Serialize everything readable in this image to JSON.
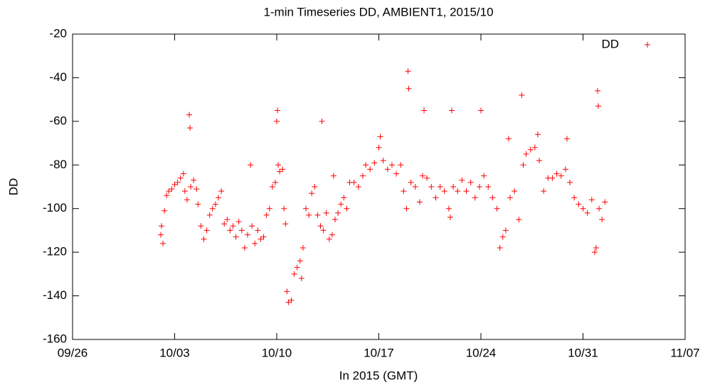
{
  "chart_data": {
    "type": "scatter",
    "title": "1-min Timeseries DD, AMBIENT1, 2015/10",
    "x_label": "In 2015 (GMT)",
    "y_label": "DD",
    "xlim": [
      0,
      42
    ],
    "xticks": [
      {
        "value": 0,
        "label": "09/26"
      },
      {
        "value": 7,
        "label": "10/03"
      },
      {
        "value": 14,
        "label": "10/10"
      },
      {
        "value": 21,
        "label": "10/17"
      },
      {
        "value": 28,
        "label": "10/24"
      },
      {
        "value": 35,
        "label": "10/31"
      },
      {
        "value": 42,
        "label": "11/07"
      }
    ],
    "ylim": [
      -160,
      -20
    ],
    "yticks": [
      -160,
      -140,
      -120,
      -100,
      -80,
      -60,
      -40,
      -20
    ],
    "legend": "top-right",
    "marker": "plus",
    "series": [
      {
        "name": "DD",
        "color": "#ff0000",
        "x": [
          6.05,
          6.1,
          6.2,
          6.3,
          6.45,
          6.6,
          6.8,
          7.0,
          7.2,
          7.4,
          7.6,
          7.7,
          7.85,
          8.0,
          8.05,
          8.1,
          8.3,
          8.5,
          8.6,
          8.8,
          9.0,
          9.2,
          9.4,
          9.6,
          9.8,
          10.0,
          10.2,
          10.4,
          10.6,
          10.8,
          11.0,
          11.2,
          11.4,
          11.6,
          11.8,
          12.0,
          12.2,
          12.3,
          12.5,
          12.7,
          12.9,
          13.1,
          13.3,
          13.5,
          13.7,
          13.9,
          14.0,
          14.05,
          14.1,
          14.2,
          14.4,
          14.5,
          14.6,
          14.7,
          14.8,
          15.0,
          15.2,
          15.4,
          15.6,
          15.7,
          15.8,
          16.0,
          16.2,
          16.4,
          16.6,
          16.8,
          17.0,
          17.1,
          17.2,
          17.4,
          17.6,
          17.8,
          17.9,
          18.0,
          18.2,
          18.4,
          18.6,
          18.8,
          19.0,
          19.3,
          19.6,
          19.9,
          20.1,
          20.4,
          20.7,
          21.0,
          21.1,
          21.3,
          21.6,
          21.9,
          22.2,
          22.5,
          22.7,
          22.9,
          23.0,
          23.05,
          23.2,
          23.5,
          23.8,
          24.0,
          24.1,
          24.3,
          24.6,
          24.9,
          25.2,
          25.5,
          25.8,
          25.9,
          26.0,
          26.1,
          26.4,
          26.7,
          27.0,
          27.3,
          27.6,
          27.9,
          28.0,
          28.2,
          28.5,
          28.8,
          29.1,
          29.3,
          29.5,
          29.7,
          29.9,
          30.0,
          30.3,
          30.6,
          30.8,
          30.9,
          31.1,
          31.4,
          31.7,
          31.9,
          32.0,
          32.3,
          32.6,
          32.9,
          33.2,
          33.5,
          33.8,
          33.9,
          34.1,
          34.4,
          34.7,
          35.0,
          35.3,
          35.6,
          35.8,
          35.9,
          36.0,
          36.05,
          36.1,
          36.3,
          36.5
        ],
        "values": [
          -112,
          -108,
          -116,
          -101,
          -94,
          -92,
          -91,
          -89,
          -88,
          -86,
          -84,
          -92,
          -96,
          -57,
          -63,
          -90,
          -87,
          -91,
          -98,
          -108,
          -114,
          -110,
          -103,
          -100,
          -98,
          -95,
          -92,
          -107,
          -105,
          -110,
          -108,
          -113,
          -106,
          -110,
          -118,
          -112,
          -80,
          -108,
          -116,
          -110,
          -114,
          -113,
          -103,
          -100,
          -90,
          -88,
          -60,
          -55,
          -80,
          -83,
          -82,
          -100,
          -107,
          -138,
          -143,
          -142,
          -130,
          -127,
          -124,
          -132,
          -118,
          -100,
          -103,
          -93,
          -90,
          -103,
          -108,
          -60,
          -110,
          -102,
          -114,
          -112,
          -85,
          -105,
          -102,
          -98,
          -95,
          -100,
          -88,
          -88,
          -90,
          -85,
          -80,
          -82,
          -79,
          -72,
          -67,
          -78,
          -82,
          -80,
          -84,
          -80,
          -92,
          -100,
          -37,
          -45,
          -88,
          -90,
          -97,
          -85,
          -55,
          -86,
          -90,
          -95,
          -90,
          -92,
          -100,
          -104,
          -55,
          -90,
          -92,
          -87,
          -92,
          -88,
          -95,
          -90,
          -55,
          -85,
          -90,
          -95,
          -100,
          -118,
          -113,
          -110,
          -68,
          -95,
          -92,
          -105,
          -48,
          -80,
          -75,
          -73,
          -72,
          -66,
          -78,
          -92,
          -86,
          -86,
          -84,
          -85,
          -82,
          -68,
          -88,
          -95,
          -98,
          -100,
          -102,
          -96,
          -120,
          -118,
          -46,
          -53,
          -100,
          -105,
          -97
        ]
      }
    ]
  }
}
